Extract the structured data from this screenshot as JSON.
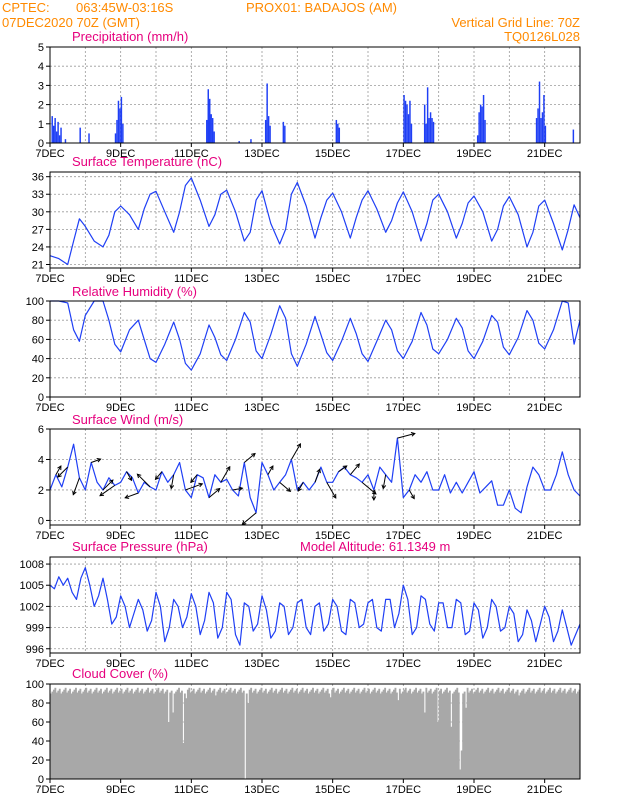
{
  "header": {
    "left_line1": "CPTEC:",
    "coords": "063:45W-03:16S",
    "location": "PROX01: BADAJOS (AM)",
    "left_line2": "07DEC2020 70Z (GMT)",
    "right_line1": "Vertical Grid Line: 70Z",
    "right_line2": "TQ0126L028"
  },
  "colors": {
    "header": "#ff8a00",
    "title": "#e6007e",
    "series": "#1f3ff5",
    "cloud": "#a8a8a8",
    "wind_arrow": "#000000"
  },
  "chart_data": [
    {
      "id": "precip",
      "type": "bar",
      "title": "Precipitation (mm/h)",
      "ylim": [
        0,
        5
      ],
      "yticks": [
        0,
        1,
        2,
        3,
        4,
        5
      ],
      "xticks": [
        "7DEC",
        "9DEC",
        "11DEC",
        "13DEC",
        "15DEC",
        "17DEC",
        "19DEC",
        "21DEC"
      ],
      "x_unit": "hours since 7DEC 00Z",
      "xlim": [
        0,
        360
      ],
      "events": [
        {
          "x": 1,
          "v": 1.4
        },
        {
          "x": 2,
          "v": 0.9
        },
        {
          "x": 3,
          "v": 1.3
        },
        {
          "x": 4,
          "v": 0.6
        },
        {
          "x": 5,
          "v": 1.1
        },
        {
          "x": 6,
          "v": 0.4
        },
        {
          "x": 7,
          "v": 0.8
        },
        {
          "x": 10,
          "v": 0.2
        },
        {
          "x": 20,
          "v": 0.8
        },
        {
          "x": 26,
          "v": 0.5
        },
        {
          "x": 44,
          "v": 0.5
        },
        {
          "x": 45,
          "v": 1.2
        },
        {
          "x": 46,
          "v": 2.2
        },
        {
          "x": 47,
          "v": 1.8
        },
        {
          "x": 48,
          "v": 2.4
        },
        {
          "x": 49,
          "v": 1.0
        },
        {
          "x": 106,
          "v": 1.2
        },
        {
          "x": 107,
          "v": 2.8
        },
        {
          "x": 108,
          "v": 2.3
        },
        {
          "x": 109,
          "v": 1.5
        },
        {
          "x": 110,
          "v": 1.3
        },
        {
          "x": 111,
          "v": 0.6
        },
        {
          "x": 128,
          "v": 0.1
        },
        {
          "x": 136,
          "v": 0.2
        },
        {
          "x": 146,
          "v": 1.2
        },
        {
          "x": 147,
          "v": 3.1
        },
        {
          "x": 148,
          "v": 1.4
        },
        {
          "x": 149,
          "v": 0.9
        },
        {
          "x": 158,
          "v": 1.1
        },
        {
          "x": 159,
          "v": 0.9
        },
        {
          "x": 194,
          "v": 1.2
        },
        {
          "x": 195,
          "v": 1.0
        },
        {
          "x": 196,
          "v": 0.8
        },
        {
          "x": 240,
          "v": 2.5
        },
        {
          "x": 241,
          "v": 2.2
        },
        {
          "x": 242,
          "v": 2.0
        },
        {
          "x": 243,
          "v": 1.5
        },
        {
          "x": 244,
          "v": 2.2
        },
        {
          "x": 245,
          "v": 1.0
        },
        {
          "x": 254,
          "v": 2.0
        },
        {
          "x": 255,
          "v": 1.0
        },
        {
          "x": 256,
          "v": 2.9
        },
        {
          "x": 257,
          "v": 1.3
        },
        {
          "x": 258,
          "v": 1.6
        },
        {
          "x": 259,
          "v": 1.3
        },
        {
          "x": 260,
          "v": 1.1
        },
        {
          "x": 290,
          "v": 0.4
        },
        {
          "x": 291,
          "v": 1.6
        },
        {
          "x": 292,
          "v": 2.0
        },
        {
          "x": 293,
          "v": 1.9
        },
        {
          "x": 294,
          "v": 2.5
        },
        {
          "x": 295,
          "v": 1.2
        },
        {
          "x": 330,
          "v": 1.3
        },
        {
          "x": 331,
          "v": 1.8
        },
        {
          "x": 332,
          "v": 3.2
        },
        {
          "x": 333,
          "v": 1.3
        },
        {
          "x": 334,
          "v": 1.6
        },
        {
          "x": 335,
          "v": 2.5
        },
        {
          "x": 336,
          "v": 0.9
        },
        {
          "x": 355,
          "v": 0.7
        }
      ]
    },
    {
      "id": "temp",
      "type": "line",
      "title": "Surface Temperature (nC)",
      "ylim": [
        20.4,
        36.8
      ],
      "yticks": [
        21,
        24,
        27,
        30,
        33,
        36
      ],
      "xticks": [
        "7DEC",
        "9DEC",
        "11DEC",
        "13DEC",
        "15DEC",
        "17DEC",
        "19DEC",
        "21DEC"
      ],
      "x_unit": "hours since 7DEC 00Z",
      "xlim": [
        0,
        360
      ],
      "x": [
        0,
        6,
        12,
        16,
        20,
        24,
        30,
        36,
        40,
        44,
        48,
        54,
        60,
        64,
        68,
        72,
        78,
        84,
        88,
        92,
        96,
        102,
        108,
        112,
        116,
        120,
        126,
        132,
        136,
        140,
        144,
        150,
        156,
        160,
        164,
        168,
        174,
        180,
        184,
        188,
        192,
        198,
        204,
        208,
        212,
        216,
        222,
        228,
        232,
        236,
        240,
        246,
        252,
        256,
        260,
        264,
        270,
        276,
        280,
        284,
        288,
        294,
        300,
        304,
        308,
        312,
        318,
        324,
        328,
        332,
        336,
        342,
        348,
        352,
        356,
        360
      ],
      "values": [
        22.5,
        22.0,
        21.0,
        25.0,
        28.8,
        27.5,
        25.0,
        24.0,
        26.0,
        30.0,
        31.0,
        29.5,
        27.0,
        30.5,
        33.0,
        33.5,
        30.0,
        26.5,
        30.0,
        34.5,
        35.8,
        32.0,
        27.5,
        29.5,
        33.0,
        33.7,
        30.0,
        25.0,
        26.5,
        32.0,
        33.6,
        28.0,
        24.5,
        27.0,
        33.0,
        35.0,
        31.0,
        25.5,
        29.0,
        32.0,
        33.2,
        30.0,
        25.5,
        29.0,
        32.0,
        33.6,
        30.5,
        26.5,
        28.5,
        31.5,
        33.4,
        30.0,
        25.0,
        28.0,
        32.0,
        33.0,
        30.0,
        25.5,
        28.0,
        31.5,
        32.7,
        30.0,
        25.0,
        27.0,
        31.0,
        32.6,
        29.5,
        24.0,
        26.5,
        31.0,
        32.0,
        28.0,
        23.5,
        27.0,
        31.2,
        29.0
      ]
    },
    {
      "id": "rh",
      "type": "line",
      "title": "Relative Humidity (%)",
      "ylim": [
        0,
        100
      ],
      "yticks": [
        0,
        20,
        40,
        60,
        80,
        100
      ],
      "xticks": [
        "7DEC",
        "9DEC",
        "11DEC",
        "13DEC",
        "15DEC",
        "17DEC",
        "19DEC",
        "21DEC"
      ],
      "x_unit": "hours since 7DEC 00Z",
      "xlim": [
        0,
        360
      ],
      "x": [
        0,
        6,
        12,
        16,
        20,
        24,
        30,
        36,
        40,
        44,
        48,
        54,
        60,
        64,
        68,
        72,
        78,
        84,
        88,
        92,
        96,
        102,
        108,
        112,
        116,
        120,
        126,
        132,
        136,
        140,
        144,
        150,
        156,
        160,
        164,
        168,
        174,
        180,
        184,
        188,
        192,
        198,
        204,
        208,
        212,
        216,
        222,
        228,
        232,
        236,
        240,
        246,
        252,
        256,
        260,
        264,
        270,
        276,
        280,
        284,
        288,
        294,
        300,
        304,
        308,
        312,
        318,
        324,
        328,
        332,
        336,
        342,
        348,
        352,
        356,
        360
      ],
      "values": [
        100,
        100,
        98,
        70,
        58,
        85,
        100,
        100,
        80,
        55,
        47,
        70,
        80,
        60,
        40,
        36,
        55,
        78,
        60,
        35,
        28,
        45,
        75,
        62,
        44,
        38,
        60,
        88,
        78,
        48,
        40,
        65,
        95,
        82,
        45,
        32,
        55,
        84,
        65,
        46,
        38,
        58,
        82,
        66,
        45,
        37,
        58,
        80,
        70,
        48,
        40,
        58,
        88,
        75,
        50,
        45,
        60,
        82,
        72,
        48,
        40,
        58,
        85,
        78,
        52,
        44,
        62,
        90,
        80,
        56,
        50,
        70,
        100,
        98,
        55,
        80
      ]
    },
    {
      "id": "wind",
      "type": "line",
      "title": "Surface Wind (m/s)",
      "ylim": [
        -0.3,
        6
      ],
      "yticks": [
        0,
        2,
        4,
        6
      ],
      "xticks": [
        "7DEC",
        "9DEC",
        "11DEC",
        "13DEC",
        "15DEC",
        "17DEC",
        "19DEC",
        "21DEC"
      ],
      "x_unit": "hours since 7DEC 00Z",
      "xlim": [
        0,
        360
      ],
      "x": [
        0,
        4,
        8,
        12,
        16,
        20,
        24,
        28,
        32,
        36,
        40,
        44,
        48,
        52,
        56,
        60,
        64,
        68,
        72,
        76,
        80,
        84,
        88,
        92,
        96,
        100,
        104,
        108,
        112,
        116,
        120,
        124,
        128,
        132,
        136,
        140,
        144,
        148,
        152,
        156,
        160,
        164,
        168,
        172,
        176,
        180,
        184,
        188,
        192,
        196,
        200,
        204,
        208,
        212,
        216,
        220,
        224,
        228,
        232,
        236,
        240,
        244,
        248,
        252,
        256,
        260,
        264,
        268,
        272,
        276,
        280,
        284,
        288,
        292,
        296,
        300,
        304,
        308,
        312,
        316,
        320,
        324,
        328,
        332,
        336,
        340,
        344,
        348,
        352,
        356,
        360
      ],
      "values": [
        2.0,
        3.0,
        2.2,
        3.5,
        5.0,
        2.8,
        2.0,
        3.8,
        2.5,
        2.0,
        2.8,
        2.3,
        2.5,
        3.2,
        2.8,
        1.8,
        2.5,
        2.2,
        2.0,
        3.2,
        2.5,
        3.0,
        3.8,
        2.0,
        1.5,
        3.0,
        2.8,
        1.5,
        3.0,
        2.5,
        2.7,
        2.0,
        1.6,
        3.8,
        1.5,
        0.5,
        3.8,
        3.0,
        2.0,
        2.5,
        3.0,
        4.0,
        2.0,
        2.5,
        2.0,
        2.5,
        3.5,
        2.5,
        2.5,
        3.2,
        3.5,
        3.0,
        2.8,
        2.5,
        3.0,
        2.0,
        3.5,
        3.0,
        2.5,
        5.4,
        1.5,
        2.0,
        3.0,
        2.5,
        3.2,
        2.0,
        2.0,
        3.0,
        1.8,
        2.5,
        1.8,
        2.5,
        3.2,
        1.8,
        2.2,
        2.6,
        1.0,
        1.0,
        2.0,
        0.8,
        0.5,
        2.2,
        3.5,
        3.0,
        2.0,
        2.0,
        3.0,
        4.5,
        3.0,
        2.0,
        1.6
      ]
    },
    {
      "id": "pressure",
      "type": "line",
      "title": "Surface Pressure (hPa)",
      "subtitle": "Model Altitude: 61.1349 m",
      "ylim": [
        995.4,
        1009
      ],
      "yticks": [
        996,
        999,
        1002,
        1005,
        1008
      ],
      "xticks": [
        "7DEC",
        "9DEC",
        "11DEC",
        "13DEC",
        "15DEC",
        "17DEC",
        "19DEC",
        "21DEC"
      ],
      "x_unit": "hours since 7DEC 00Z",
      "xlim": [
        0,
        360
      ],
      "x": [
        0,
        3,
        6,
        9,
        12,
        15,
        18,
        21,
        24,
        27,
        30,
        33,
        36,
        39,
        42,
        45,
        48,
        51,
        54,
        57,
        60,
        63,
        66,
        69,
        72,
        75,
        78,
        81,
        84,
        87,
        90,
        93,
        96,
        99,
        102,
        105,
        108,
        111,
        114,
        117,
        120,
        123,
        126,
        129,
        132,
        135,
        138,
        141,
        144,
        147,
        150,
        153,
        156,
        159,
        162,
        165,
        168,
        171,
        174,
        177,
        180,
        183,
        186,
        189,
        192,
        195,
        198,
        201,
        204,
        207,
        210,
        213,
        216,
        219,
        222,
        225,
        228,
        231,
        234,
        237,
        240,
        243,
        246,
        249,
        252,
        255,
        258,
        261,
        264,
        267,
        270,
        273,
        276,
        279,
        282,
        285,
        288,
        291,
        294,
        297,
        300,
        303,
        306,
        309,
        312,
        315,
        318,
        321,
        324,
        327,
        330,
        333,
        336,
        339,
        342,
        345,
        348,
        351,
        354,
        357,
        360
      ],
      "values": [
        1005.0,
        1004.5,
        1006.2,
        1005.0,
        1006.0,
        1004.0,
        1003.0,
        1006.0,
        1007.5,
        1005.0,
        1002.0,
        1003.5,
        1006.0,
        1003.0,
        999.5,
        1000.5,
        1003.5,
        1002.0,
        999.0,
        1001.0,
        1003.0,
        1001.5,
        998.5,
        1000.0,
        1004.0,
        1002.0,
        997.0,
        999.0,
        1003.0,
        1002.0,
        999.0,
        1000.5,
        1003.8,
        1002.0,
        998.0,
        1000.0,
        1004.0,
        1002.5,
        997.5,
        999.0,
        1004.0,
        1003.0,
        998.0,
        996.5,
        1002.5,
        1002.0,
        998.5,
        999.5,
        1003.5,
        1001.5,
        997.5,
        998.5,
        1002.5,
        1002.0,
        998.0,
        999.0,
        1002.5,
        1003.0,
        999.0,
        998.0,
        1002.0,
        1002.5,
        998.5,
        999.5,
        1003.0,
        1002.0,
        998.5,
        998.0,
        1003.0,
        1002.5,
        999.0,
        999.5,
        1002.5,
        1003.0,
        999.0,
        998.5,
        1003.0,
        1003.0,
        999.0,
        1001.0,
        1005.0,
        1003.0,
        998.0,
        999.0,
        1003.5,
        1003.0,
        999.5,
        998.5,
        1002.5,
        1002.5,
        999.0,
        999.0,
        1003.0,
        1002.5,
        998.0,
        998.5,
        1002.5,
        1001.5,
        997.5,
        999.0,
        1003.0,
        1002.0,
        998.5,
        999.0,
        1002.0,
        1001.0,
        997.0,
        998.0,
        1001.5,
        1000.0,
        997.0,
        999.5,
        1002.0,
        1000.5,
        997.0,
        998.5,
        1001.5,
        999.0,
        996.5,
        998.0,
        999.5
      ]
    },
    {
      "id": "cloud",
      "type": "area",
      "title": "Cloud Cover (%)",
      "ylim": [
        0,
        100
      ],
      "yticks": [
        0,
        20,
        40,
        60,
        80,
        100
      ],
      "xticks": [
        "7DEC",
        "9DEC",
        "11DEC",
        "13DEC",
        "15DEC",
        "17DEC",
        "19DEC",
        "21DEC"
      ],
      "x_unit": "hours since 7DEC 00Z",
      "xlim": [
        0,
        360
      ],
      "base": 93,
      "dips": [
        {
          "x": 80,
          "v": 60
        },
        {
          "x": 83,
          "v": 70
        },
        {
          "x": 90,
          "v": 38
        },
        {
          "x": 92,
          "v": 85
        },
        {
          "x": 112,
          "v": 88
        },
        {
          "x": 132,
          "v": 0
        },
        {
          "x": 134,
          "v": 80
        },
        {
          "x": 190,
          "v": 86
        },
        {
          "x": 236,
          "v": 83
        },
        {
          "x": 254,
          "v": 70
        },
        {
          "x": 263,
          "v": 60
        },
        {
          "x": 272,
          "v": 55
        },
        {
          "x": 278,
          "v": 10
        },
        {
          "x": 279,
          "v": 30
        },
        {
          "x": 282,
          "v": 75
        },
        {
          "x": 318,
          "v": 88
        }
      ]
    }
  ]
}
